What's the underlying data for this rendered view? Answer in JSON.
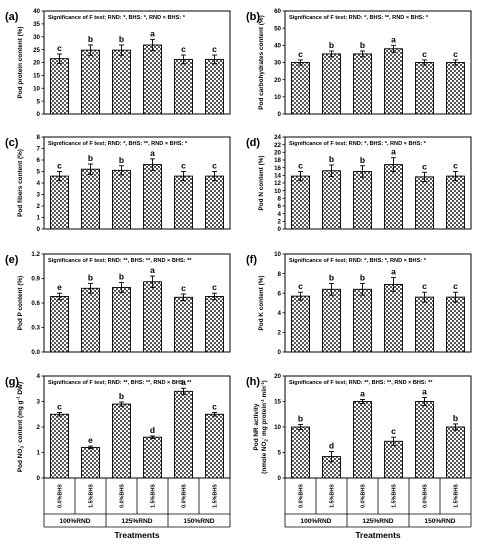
{
  "chart_data": [
    {
      "id": "a",
      "type": "bar",
      "panel_label": "(a)",
      "significance": "Significance of F test; RND: *, BHS: *, RND × BHS: *",
      "ylabel": "Pod protein content (%)",
      "ylim": [
        0,
        40
      ],
      "yticks": [
        0,
        5,
        10,
        15,
        20,
        25,
        30,
        35,
        40
      ],
      "values": [
        21.5,
        24.8,
        24.8,
        26.8,
        21.2,
        21.2
      ],
      "errors": [
        1.8,
        2.0,
        2.0,
        2.2,
        1.7,
        1.7
      ],
      "letters": [
        "c",
        "b",
        "b",
        "a",
        "c",
        "c"
      ]
    },
    {
      "id": "b",
      "type": "bar",
      "panel_label": "(b)",
      "significance": "Significance of F test; RND: *, BHS: **, RND × BHS: *",
      "ylabel": "Pod carbohydrates content (%)",
      "ylim": [
        0,
        60
      ],
      "yticks": [
        0,
        10,
        20,
        30,
        40,
        50,
        60
      ],
      "values": [
        30,
        35,
        35,
        38,
        30,
        30
      ],
      "errors": [
        1.5,
        1.7,
        1.7,
        2.0,
        1.5,
        1.5
      ],
      "letters": [
        "c",
        "b",
        "b",
        "a",
        "c",
        "c"
      ]
    },
    {
      "id": "c",
      "type": "bar",
      "panel_label": "(c)",
      "significance": "Significance of F test; RND: *, BHS: **, RND × BHS: *",
      "ylabel": "Pod fibers content (%)",
      "ylim": [
        0,
        8
      ],
      "yticks": [
        0,
        1,
        2,
        3,
        4,
        5,
        6,
        7,
        8
      ],
      "values": [
        4.6,
        5.2,
        5.1,
        5.6,
        4.6,
        4.6
      ],
      "errors": [
        0.4,
        0.45,
        0.4,
        0.5,
        0.4,
        0.4
      ],
      "letters": [
        "c",
        "b",
        "b",
        "a",
        "c",
        "c"
      ]
    },
    {
      "id": "d",
      "type": "bar",
      "panel_label": "(d)",
      "significance": "Significance of F test; RND: *, BHS: *, RND × BHS: *",
      "ylabel": "Pod N content (%)",
      "ylim": [
        0,
        24
      ],
      "yticks": [
        0,
        2,
        4,
        6,
        8,
        10,
        12,
        14,
        16,
        18,
        20,
        22,
        24
      ],
      "values": [
        13.8,
        15.2,
        15.0,
        16.8,
        13.6,
        13.8
      ],
      "errors": [
        1.2,
        1.5,
        1.5,
        1.8,
        1.2,
        1.2
      ],
      "letters": [
        "c",
        "b",
        "b",
        "a",
        "c",
        "c"
      ]
    },
    {
      "id": "e",
      "type": "bar",
      "panel_label": "(e)",
      "significance": "Significance of F test; RND: **, BHS: **, RND × BHS: **",
      "ylabel": "Pod P content (%)",
      "ylim": [
        0,
        1.2
      ],
      "yticks": [
        0.0,
        0.3,
        0.6,
        0.9,
        1.2
      ],
      "yticklabels": [
        "0.0",
        "0.3",
        "0.6",
        "0.9",
        "1.2"
      ],
      "values": [
        0.68,
        0.78,
        0.79,
        0.86,
        0.67,
        0.68
      ],
      "errors": [
        0.04,
        0.06,
        0.06,
        0.07,
        0.04,
        0.04
      ],
      "letters": [
        "e",
        "b",
        "b",
        "a",
        "c",
        "c"
      ]
    },
    {
      "id": "f",
      "type": "bar",
      "panel_label": "(f)",
      "significance": "Significance of F test; RND: *, BHS: *, RND × BHS: *",
      "ylabel": "Pod K content (%)",
      "ylim": [
        0,
        10
      ],
      "yticks": [
        0,
        2,
        4,
        6,
        8,
        10
      ],
      "values": [
        5.7,
        6.4,
        6.4,
        6.9,
        5.6,
        5.6
      ],
      "errors": [
        0.4,
        0.6,
        0.6,
        0.7,
        0.5,
        0.5
      ],
      "letters": [
        "c",
        "b",
        "b",
        "a",
        "c",
        "c"
      ]
    },
    {
      "id": "g",
      "type": "bar",
      "panel_label": "(g)",
      "significance": "Significance of F test; RND: **, BHS: **, RND × BHS: **",
      "ylabel_main": "Pod NO",
      "ylabel_sub": "3",
      "ylabel_sup": "-",
      "ylabel_rest": " content (mg g",
      "ylabel_sup2": "-1",
      "ylabel_end": " DW)",
      "ylim": [
        0,
        4
      ],
      "yticks": [
        0,
        1,
        2,
        3,
        4
      ],
      "values": [
        2.5,
        1.2,
        2.9,
        1.6,
        3.4,
        2.5
      ],
      "errors": [
        0.07,
        0.05,
        0.08,
        0.05,
        0.12,
        0.07
      ],
      "letters": [
        "c",
        "e",
        "b",
        "d",
        "a",
        "c"
      ]
    },
    {
      "id": "h",
      "type": "bar",
      "panel_label": "(h)",
      "significance": "Significance of F test; RND: **, BHS: **, RND × BHS: **",
      "ylabel_line1": "Pod NR activity",
      "ylabel_line2_a": "(nmole NO",
      "ylabel_line2_sub": "2",
      "ylabel_line2_sup": "-",
      "ylabel_line2_b": " mg protein",
      "ylabel_line2_sup2": "-1",
      "ylabel_line2_c": " min",
      "ylabel_line2_sup3": "-1",
      "ylabel_line2_d": ")",
      "ylim": [
        0,
        20
      ],
      "yticks": [
        0,
        5,
        10,
        15,
        20
      ],
      "values": [
        10.0,
        4.2,
        15.0,
        7.2,
        15.0,
        10.0
      ],
      "errors": [
        0.5,
        1.0,
        0.4,
        0.8,
        0.8,
        0.6
      ],
      "letters": [
        "b",
        "d",
        "a",
        "c",
        "a",
        "b"
      ]
    }
  ],
  "categories": [
    "0.0%BHS",
    "1.5%BHS",
    "0.0%BHS",
    "1.5%BHS",
    "0.0%BHS",
    "1.5%BHS"
  ],
  "groups": [
    "100%RND",
    "125%RND",
    "150%RND"
  ],
  "xlabel": "Treatments"
}
